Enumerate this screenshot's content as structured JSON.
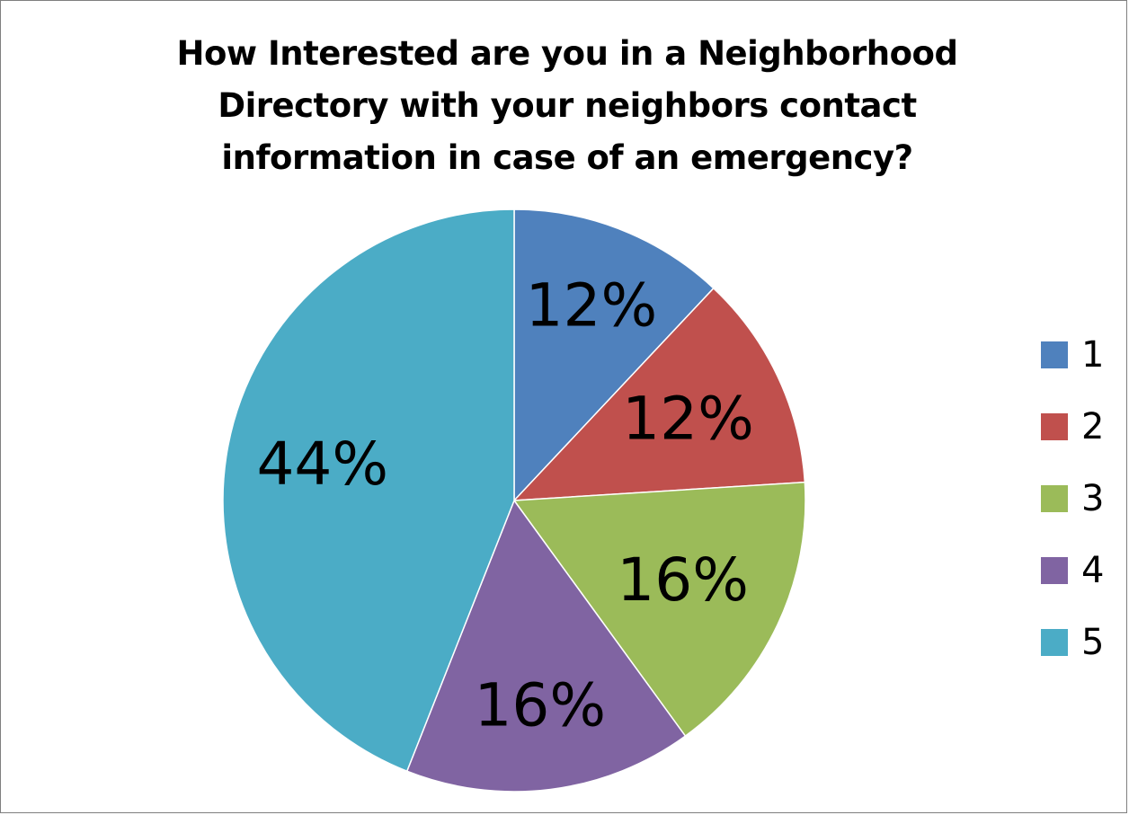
{
  "chart_data": {
    "type": "pie",
    "title_lines": [
      "How Interested are you in a Neighborhood",
      "Directory with your neighbors contact",
      "information in case of an emergency?"
    ],
    "categories": [
      "1",
      "2",
      "3",
      "4",
      "5"
    ],
    "values": [
      12,
      12,
      16,
      16,
      44
    ],
    "labels": [
      "12%",
      "12%",
      "16%",
      "16%",
      "44%"
    ],
    "colors": [
      "#4F81BD",
      "#C0504D",
      "#9BBB59",
      "#8064A2",
      "#4BACC6"
    ],
    "start_angle": "12 o'clock",
    "direction": "clockwise",
    "legend_position": "right"
  }
}
